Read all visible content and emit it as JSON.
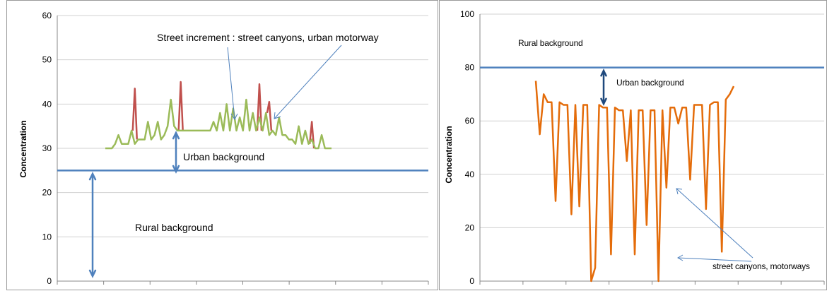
{
  "chart_data": [
    {
      "type": "line",
      "ylabel": "Concentration",
      "xlabel": "",
      "ylim": [
        0,
        60
      ],
      "yticks": [
        "0",
        "10",
        "20",
        "30",
        "40",
        "50",
        "60"
      ],
      "grid": true,
      "colors": {
        "background_line": "#4f81bd",
        "urban_profile": "#9bbb59",
        "peaks": "#c0504d",
        "arrows": "#4f81bd",
        "grid": "#d0d0d0"
      },
      "annotations": {
        "street_increment": "Street increment : street canyons,  urban motorway",
        "urban_background": "Urban background",
        "rural_background": "Rural background"
      },
      "rural_background_level": 25,
      "series": [
        {
          "values": [
            30,
            30,
            30,
            31,
            33,
            31,
            31,
            31,
            34,
            31,
            32,
            32,
            32,
            36,
            32,
            33,
            36,
            32,
            33,
            35,
            41,
            35,
            34,
            34,
            34,
            34,
            34,
            34,
            34,
            34,
            34,
            34,
            34,
            36,
            34,
            38,
            34,
            40,
            34,
            39,
            34,
            37,
            34,
            41,
            34,
            38,
            34,
            37,
            34,
            38,
            33,
            34,
            33,
            37,
            33,
            33,
            32,
            32,
            31,
            35,
            31,
            34,
            31,
            32,
            30,
            30,
            33,
            30,
            30,
            30
          ]
        },
        {
          "peaks": [
            {
              "x": 9,
              "y": 43.5
            },
            {
              "x": 23,
              "y": 45
            },
            {
              "x": 47,
              "y": 44.5
            },
            {
              "x": 50,
              "y": 40.5
            },
            {
              "x": 63,
              "y": 36
            }
          ]
        }
      ]
    },
    {
      "type": "line",
      "ylabel": "Concentration",
      "xlabel": "",
      "ylim": [
        0,
        100
      ],
      "yticks": [
        "0",
        "20",
        "40",
        "60",
        "80",
        "100"
      ],
      "grid": true,
      "colors": {
        "background_line": "#4f81bd",
        "urban_profile": "#e46c0a",
        "arrows": "#4f81bd",
        "arrow_dark": "#1f497d",
        "grid": "#d0d0d0"
      },
      "annotations": {
        "rural_background": "Rural background",
        "urban_background": "Urban background",
        "street_canyons": "street canyons, motorways"
      },
      "rural_background_level": 80,
      "series": [
        {
          "values": [
            75,
            55,
            70,
            67,
            67,
            30,
            67,
            66,
            66,
            25,
            66,
            28,
            66,
            66,
            0,
            5,
            66,
            65,
            65,
            10,
            65,
            64,
            64,
            45,
            64,
            10,
            64,
            64,
            21,
            64,
            64,
            0,
            64,
            35,
            65,
            65,
            59,
            65,
            65,
            38,
            66,
            66,
            66,
            27,
            66,
            67,
            67,
            11,
            68,
            70,
            73
          ]
        }
      ]
    }
  ]
}
